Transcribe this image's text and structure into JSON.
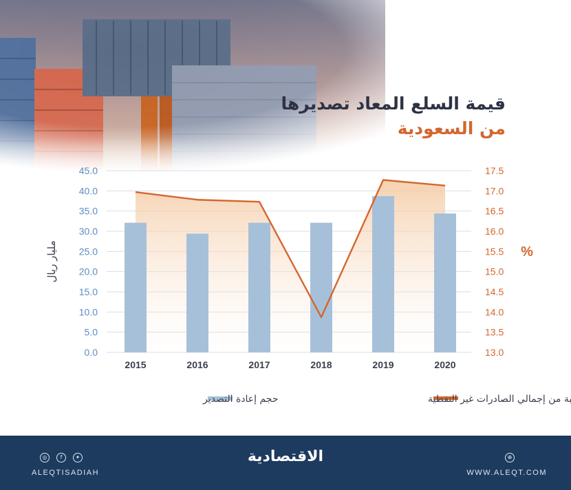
{
  "title": "قيمة السلع المعاد تصديرها",
  "subtitle": "من السعودية",
  "footer": {
    "logo": "الاقتصادية",
    "left_text": "ALEQTISADIAH",
    "right_text": "WWW.ALEQT.COM",
    "social_icons": [
      "instagram-icon",
      "facebook-icon",
      "twitter-icon"
    ],
    "web_icon": "globe-icon"
  },
  "colors": {
    "bar": "#a7c0d9",
    "line": "#d2672f",
    "area_top": "#f4c9a2",
    "left_axis": "#5b8ec4",
    "right_axis": "#d2672f",
    "footer_bg": "#1d3a5f"
  },
  "chart_data": {
    "type": "bar",
    "categories": [
      "2015",
      "2016",
      "2017",
      "2018",
      "2019",
      "2020"
    ],
    "series": [
      {
        "name": "حجم إعادة التصدير",
        "type": "bar",
        "axis": "left",
        "values": [
          32.1,
          29.4,
          32.1,
          32.1,
          38.7,
          34.4
        ]
      },
      {
        "name": "النسبة من إجمالي الصادرات غير النفطية",
        "type": "line",
        "axis": "right",
        "values": [
          16.97,
          16.78,
          16.73,
          13.87,
          17.27,
          17.13
        ]
      }
    ],
    "ylabel_left": "مليار ريال",
    "ylabel_right": "%",
    "ylim_left": [
      0,
      45
    ],
    "ylim_right": [
      13,
      17.5
    ],
    "yticks_left": [
      "0.0",
      "5.0",
      "10.0",
      "15.0",
      "20.0",
      "25.0",
      "30.0",
      "35.0",
      "40.0",
      "45.0"
    ],
    "yticks_right": [
      "13.0",
      "13.5",
      "14.0",
      "14.5",
      "15.0",
      "15.5",
      "16.0",
      "16.5",
      "17.0",
      "17.5"
    ],
    "grid": true,
    "legend_position": "bottom"
  }
}
